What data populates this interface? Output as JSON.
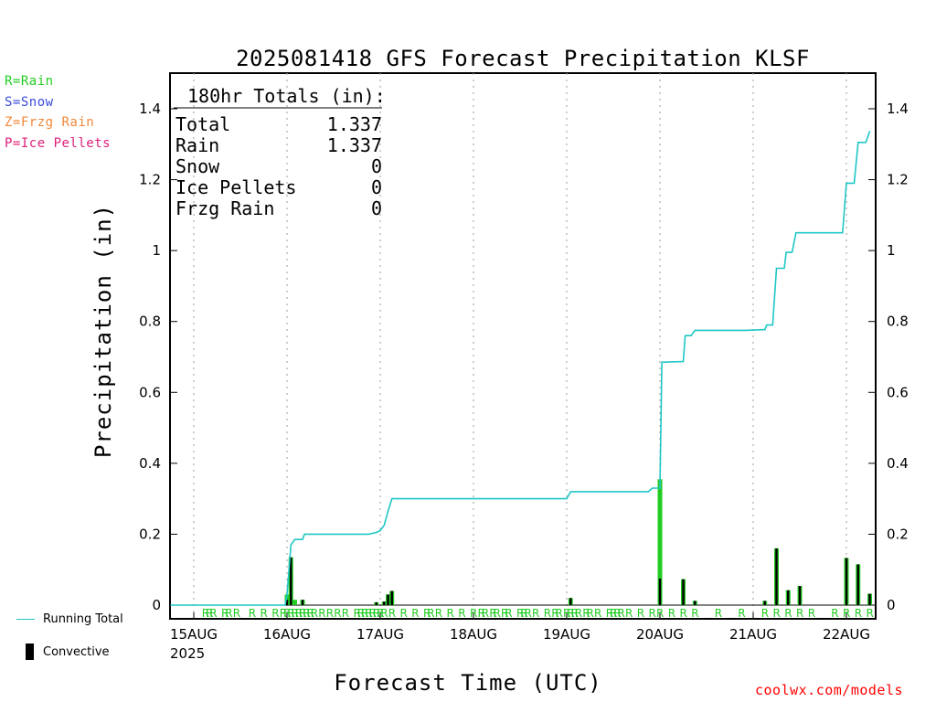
{
  "legend": [
    {
      "label": "R=Rain",
      "color": "#22cc22"
    },
    {
      "label": "S=Snow",
      "color": "#3b4bdc"
    },
    {
      "label": "Z=Frzg Rain",
      "color": "#f0883a"
    },
    {
      "label": "P=Ice Pellets",
      "color": "#e0207a"
    }
  ],
  "bottom_legend": {
    "running_total": "Running Total",
    "convective": "Convective"
  },
  "credit": "coolwx.com/models",
  "colors": {
    "running_total": "#1fc6c6",
    "rain_bar": "#22cc22",
    "convective_bar": "#000000",
    "grid": "#aaaaaa"
  },
  "chart_data": {
    "type": "bar",
    "title": "2025081418 GFS Forecast Precipitation KLSF",
    "xlabel": "Forecast Time (UTC)",
    "ylabel": "Precipitation (in)",
    "ylim": [
      0,
      1.46
    ],
    "yticks": [
      "0",
      "0.2",
      "0.4",
      "0.6",
      "0.8",
      "1",
      "1.2",
      "1.4"
    ],
    "xlim_hours": [
      -6,
      183
    ],
    "xticks": [
      {
        "h": 0,
        "label": "15AUG",
        "sublabel": "2025"
      },
      {
        "h": 24,
        "label": "16AUG"
      },
      {
        "h": 48,
        "label": "17AUG"
      },
      {
        "h": 72,
        "label": "18AUG"
      },
      {
        "h": 96,
        "label": "19AUG"
      },
      {
        "h": 120,
        "label": "20AUG"
      },
      {
        "h": 144,
        "label": "21AUG"
      },
      {
        "h": 168,
        "label": "22AUG"
      }
    ],
    "grid": "dotted vertical at day boundaries",
    "totals_box": {
      "header": "180hr Totals (in):",
      "rows": [
        {
          "label": "Total",
          "value": "1.337"
        },
        {
          "label": "Rain",
          "value": "1.337"
        },
        {
          "label": "Snow",
          "value": "0"
        },
        {
          "label": "Ice Pellets",
          "value": "0"
        },
        {
          "label": "Frzg Rain",
          "value": "0"
        }
      ]
    },
    "running_total": [
      [
        -6,
        0
      ],
      [
        23.5,
        0
      ],
      [
        24,
        0.03
      ],
      [
        25,
        0.17
      ],
      [
        26,
        0.185
      ],
      [
        28,
        0.185
      ],
      [
        28.5,
        0.2
      ],
      [
        45,
        0.2
      ],
      [
        47,
        0.205
      ],
      [
        48,
        0.21
      ],
      [
        49,
        0.225
      ],
      [
        50,
        0.265
      ],
      [
        51,
        0.3
      ],
      [
        96,
        0.3
      ],
      [
        97,
        0.32
      ],
      [
        117,
        0.32
      ],
      [
        118,
        0.33
      ],
      [
        120,
        0.33
      ],
      [
        120.5,
        0.685
      ],
      [
        126,
        0.687
      ],
      [
        126.5,
        0.76
      ],
      [
        128,
        0.76
      ],
      [
        129,
        0.775
      ],
      [
        142,
        0.775
      ],
      [
        147,
        0.777
      ],
      [
        147.5,
        0.79
      ],
      [
        149,
        0.79
      ],
      [
        150,
        0.95
      ],
      [
        152,
        0.95
      ],
      [
        152.5,
        0.995
      ],
      [
        154,
        0.995
      ],
      [
        155,
        1.05
      ],
      [
        167,
        1.05
      ],
      [
        168,
        1.19
      ],
      [
        170,
        1.19
      ],
      [
        171,
        1.305
      ],
      [
        173,
        1.305
      ],
      [
        174,
        1.337
      ]
    ],
    "bars": [
      {
        "h": 24,
        "rain": 0.03,
        "conv": 0.015
      },
      {
        "h": 25,
        "rain": 0.135,
        "conv": 0.135
      },
      {
        "h": 26,
        "rain": 0.015,
        "conv": 0
      },
      {
        "h": 28,
        "rain": 0.015,
        "conv": 0.015
      },
      {
        "h": 47,
        "rain": 0.008,
        "conv": 0.008
      },
      {
        "h": 49,
        "rain": 0.01,
        "conv": 0.01
      },
      {
        "h": 50,
        "rain": 0.03,
        "conv": 0.03
      },
      {
        "h": 51,
        "rain": 0.04,
        "conv": 0.04
      },
      {
        "h": 97,
        "rain": 0.02,
        "conv": 0.02
      },
      {
        "h": 120,
        "rain": 0.355,
        "conv": 0.075
      },
      {
        "h": 126,
        "rain": 0.073,
        "conv": 0.073
      },
      {
        "h": 129,
        "rain": 0.012,
        "conv": 0.012
      },
      {
        "h": 147,
        "rain": 0.012,
        "conv": 0.012
      },
      {
        "h": 150,
        "rain": 0.16,
        "conv": 0.16
      },
      {
        "h": 153,
        "rain": 0.042,
        "conv": 0.042
      },
      {
        "h": 156,
        "rain": 0.054,
        "conv": 0.054
      },
      {
        "h": 168,
        "rain": 0.133,
        "conv": 0.133
      },
      {
        "h": 171,
        "rain": 0.115,
        "conv": 0.115
      },
      {
        "h": 174,
        "rain": 0.032,
        "conv": 0.032
      }
    ],
    "ptype_marker": "R",
    "ptype_hours": [
      3,
      4,
      5,
      8,
      9,
      11,
      15,
      18,
      21,
      23,
      24,
      25,
      26,
      27,
      28,
      29,
      30,
      31,
      33,
      35,
      37,
      39,
      42,
      43,
      44,
      45,
      46,
      47,
      48,
      49,
      51,
      54,
      57,
      60,
      61,
      63,
      66,
      69,
      72,
      74,
      75,
      77,
      78,
      80,
      81,
      84,
      85,
      86,
      88,
      91,
      93,
      94,
      96,
      97,
      98,
      99,
      101,
      102,
      104,
      107,
      108,
      109,
      110,
      112,
      115,
      118,
      120,
      123,
      126,
      129,
      135,
      141,
      147,
      150,
      153,
      156,
      159,
      165,
      168,
      171,
      174
    ]
  }
}
